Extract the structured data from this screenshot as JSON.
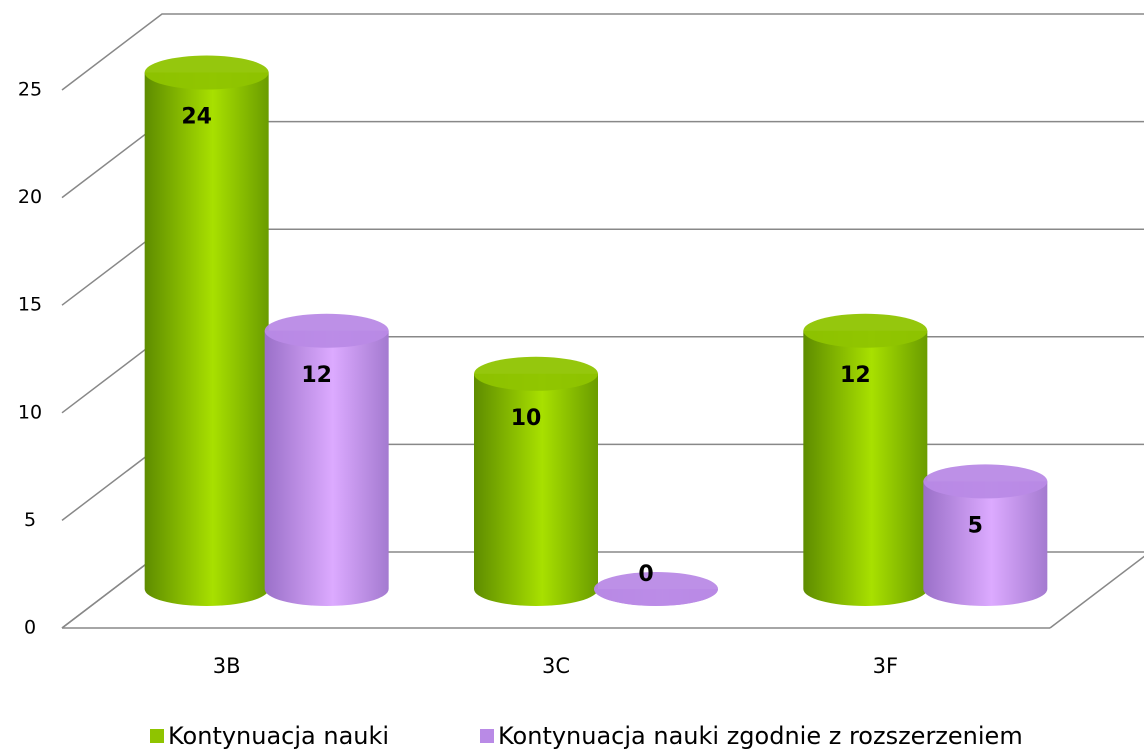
{
  "chart_data": {
    "type": "bar3d",
    "categories": [
      "3B",
      "3C",
      "3F"
    ],
    "series": [
      {
        "name": "Kontynuacja nauki",
        "color": "#8fc400",
        "values": [
          24,
          10,
          12
        ]
      },
      {
        "name": "Kontynuacja nauki zgodnie z rozszerzeniem",
        "color": "#b98ae6",
        "values": [
          12,
          0,
          5
        ]
      }
    ],
    "ylim": [
      0,
      25
    ],
    "yticks": [
      0,
      5,
      10,
      15,
      20,
      25
    ],
    "grid": true,
    "legend": "bottom"
  }
}
